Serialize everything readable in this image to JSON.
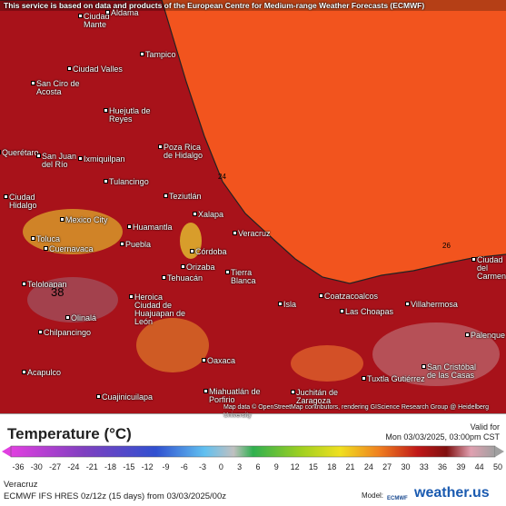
{
  "header": {
    "attribution": "This service is based on data and products of the European Centre for Medium-range Weather Forecasts (ECMWF)",
    "credit": "Map data © OpenStreetMap contributors, rendering GIScience Research Group @ Heidelberg University"
  },
  "map": {
    "cities": [
      "Ciudad Mante",
      "Aldama",
      "Tampico",
      "Ciudad Valles",
      "San Ciro de Acosta",
      "Huejutla de Reyes",
      "Poza Rica de Hidalgo",
      "Querétaro",
      "San Juan del Río",
      "Ixmiquilpan",
      "Tulancingo",
      "Teziutlán",
      "Ciudad Hidalgo",
      "Mexico City",
      "Xalapa",
      "Huamantla",
      "Veracruz",
      "Toluca",
      "Cuernavaca",
      "Puebla",
      "Córdoba",
      "Orizaba",
      "Tehuacán",
      "Tierra Blanca",
      "Teloloapan",
      "Coatzacoalcos",
      "Las Choapas",
      "Villahermosa",
      "Isla",
      "Heroica Ciudad de Huajuapan de León",
      "Olinalá",
      "Chilpancingo",
      "Palenque",
      "Oaxaca",
      "Acapulco",
      "San Cristóbal de las Casas",
      "Tuxtla Gutiérrez",
      "Miahuatlán de Porfirio",
      "Juchitán de Zaragoza",
      "Cuajinicuilapa",
      "Ciudad del Carmen"
    ],
    "contour_labels": [
      "24",
      "26",
      "38"
    ]
  },
  "legend": {
    "title": "Temperature (°C)",
    "valid_label": "Valid for",
    "valid_time": "Mon 03/03/2025, 03:00pm CST",
    "ticks": [
      -36,
      -30,
      -27,
      -24,
      -21,
      -18,
      -15,
      -12,
      -9,
      -6,
      -3,
      0,
      3,
      6,
      9,
      12,
      15,
      18,
      21,
      24,
      27,
      30,
      33,
      36,
      39,
      44,
      50
    ],
    "location": "Veracruz",
    "model_run": "ECMWF IFS HRES 0z/12z (15 days) from 03/03/2025/00z",
    "model_label": "Model:",
    "model_name": "ECMWF",
    "brand": "weather.us"
  }
}
